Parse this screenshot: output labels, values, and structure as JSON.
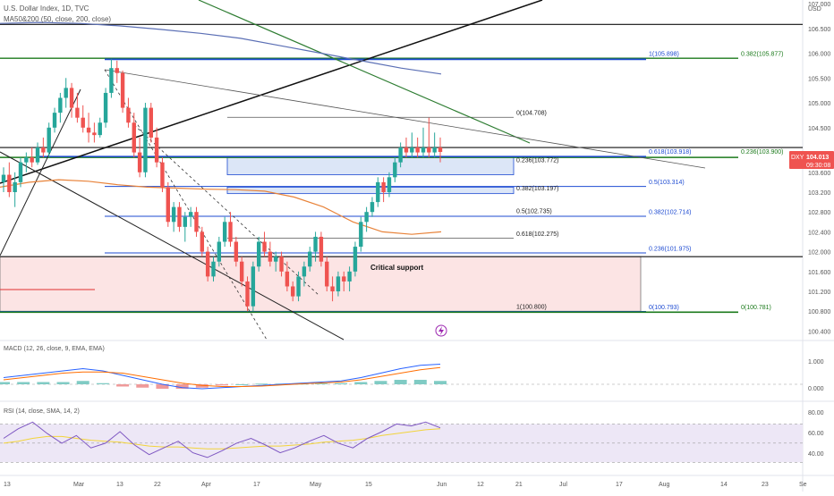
{
  "header": {
    "title": "U.S. Dollar Index, 1D, TVC",
    "indicator": "MA50&200 (50, close, 200, close)",
    "currency": "USD"
  },
  "price_badge": {
    "symbol": "DXY",
    "price": "104.013",
    "countdown": "09:30:08"
  },
  "macd": {
    "label": "MACD (12, 26, close, 9, EMA, EMA)",
    "ticks": [
      "1.000",
      "0.000"
    ]
  },
  "rsi": {
    "label": "RSI (14, close, SMA, 14, 2)",
    "ticks": [
      "80.00",
      "60.00",
      "40.00"
    ]
  },
  "annotations": {
    "critical_support": "Critical support"
  },
  "fib_labels": [
    {
      "text": "1(105.898)",
      "color": "#1e4bd2"
    },
    {
      "text": "0.382(105.877)",
      "color": "#1b7a1b"
    },
    {
      "text": "0(104.708)",
      "color": "#222222"
    },
    {
      "text": "0.618(103.918)",
      "color": "#1e4bd2"
    },
    {
      "text": "0.236(103.900)",
      "color": "#1b7a1b"
    },
    {
      "text": "0.236(103.772)",
      "color": "#222222"
    },
    {
      "text": "0.5(103.314)",
      "color": "#1e4bd2"
    },
    {
      "text": "0.382(103.197)",
      "color": "#222222"
    },
    {
      "text": "0.5(102.735)",
      "color": "#222222"
    },
    {
      "text": "0.382(102.714)",
      "color": "#1e4bd2"
    },
    {
      "text": "0.618(102.275)",
      "color": "#222222"
    },
    {
      "text": "0.236(101.975)",
      "color": "#1e4bd2"
    },
    {
      "text": "1(100.800)",
      "color": "#222222"
    },
    {
      "text": "0(100.793)",
      "color": "#1e4bd2"
    },
    {
      "text": "0(100.781)",
      "color": "#1b7a1b"
    }
  ],
  "colors": {
    "up": "#26a69a",
    "down": "#ef5350",
    "ma50": "#e8833a",
    "ma200": "#5b6fb5",
    "fib_blue": "#1e4bd2",
    "fib_green": "#1b7a1b",
    "support_fill": "#fce4e4",
    "rsi_line": "#7e57c2",
    "rsi_ma": "#f2d43b"
  },
  "chart_data": {
    "type": "candlestick",
    "symbol": "DXY",
    "interval": "1D",
    "ylim": [
      100.3,
      107.0
    ],
    "y_ticks": [
      107.0,
      106.5,
      106.0,
      105.5,
      105.0,
      104.5,
      103.6,
      103.2,
      102.8,
      102.4,
      102.0,
      101.6,
      101.2,
      100.8,
      100.4
    ],
    "x_ticks": [
      "13",
      "Mar",
      "13",
      "22",
      "Apr",
      "17",
      "May",
      "15",
      "Jun",
      "12",
      "21",
      "Jul",
      "17",
      "Aug",
      "14",
      "23",
      "Se"
    ],
    "candles": [
      {
        "o": 103.4,
        "h": 103.7,
        "l": 103.2,
        "c": 103.55
      },
      {
        "o": 103.55,
        "h": 103.8,
        "l": 103.1,
        "c": 103.2
      },
      {
        "o": 103.2,
        "h": 103.6,
        "l": 102.9,
        "c": 103.4
      },
      {
        "o": 103.4,
        "h": 103.9,
        "l": 103.3,
        "c": 103.8
      },
      {
        "o": 103.8,
        "h": 104.0,
        "l": 103.6,
        "c": 103.9
      },
      {
        "o": 103.9,
        "h": 104.1,
        "l": 103.7,
        "c": 103.8
      },
      {
        "o": 103.8,
        "h": 104.2,
        "l": 103.75,
        "c": 104.1
      },
      {
        "o": 104.1,
        "h": 104.3,
        "l": 103.9,
        "c": 104.0
      },
      {
        "o": 104.0,
        "h": 104.6,
        "l": 103.9,
        "c": 104.5
      },
      {
        "o": 104.5,
        "h": 104.9,
        "l": 104.4,
        "c": 104.8
      },
      {
        "o": 104.8,
        "h": 105.2,
        "l": 104.6,
        "c": 105.1
      },
      {
        "o": 105.1,
        "h": 105.5,
        "l": 104.9,
        "c": 105.3
      },
      {
        "o": 105.3,
        "h": 105.4,
        "l": 104.7,
        "c": 104.9
      },
      {
        "o": 104.9,
        "h": 105.2,
        "l": 104.6,
        "c": 104.7
      },
      {
        "o": 104.7,
        "h": 104.95,
        "l": 104.4,
        "c": 104.5
      },
      {
        "o": 104.5,
        "h": 104.8,
        "l": 104.2,
        "c": 104.4
      },
      {
        "o": 104.4,
        "h": 104.6,
        "l": 104.2,
        "c": 104.35
      },
      {
        "o": 104.35,
        "h": 104.7,
        "l": 104.3,
        "c": 104.6
      },
      {
        "o": 104.6,
        "h": 105.3,
        "l": 104.5,
        "c": 105.2
      },
      {
        "o": 105.2,
        "h": 105.88,
        "l": 105.1,
        "c": 105.7
      },
      {
        "o": 105.7,
        "h": 105.85,
        "l": 105.4,
        "c": 105.6
      },
      {
        "o": 105.6,
        "h": 105.65,
        "l": 104.8,
        "c": 104.9
      },
      {
        "o": 104.9,
        "h": 105.1,
        "l": 104.5,
        "c": 104.6
      },
      {
        "o": 104.6,
        "h": 104.8,
        "l": 103.9,
        "c": 104.0
      },
      {
        "o": 104.0,
        "h": 104.3,
        "l": 103.5,
        "c": 103.6
      },
      {
        "o": 103.6,
        "h": 105.0,
        "l": 103.5,
        "c": 104.9
      },
      {
        "o": 104.9,
        "h": 105.0,
        "l": 104.2,
        "c": 104.3
      },
      {
        "o": 104.3,
        "h": 104.5,
        "l": 103.7,
        "c": 103.8
      },
      {
        "o": 103.8,
        "h": 103.9,
        "l": 103.2,
        "c": 103.3
      },
      {
        "o": 103.3,
        "h": 103.4,
        "l": 102.5,
        "c": 102.6
      },
      {
        "o": 102.6,
        "h": 103.0,
        "l": 102.4,
        "c": 102.9
      },
      {
        "o": 102.9,
        "h": 103.0,
        "l": 102.4,
        "c": 102.5
      },
      {
        "o": 102.5,
        "h": 102.8,
        "l": 102.2,
        "c": 102.7
      },
      {
        "o": 102.7,
        "h": 102.9,
        "l": 102.5,
        "c": 102.8
      },
      {
        "o": 102.8,
        "h": 102.9,
        "l": 102.3,
        "c": 102.4
      },
      {
        "o": 102.4,
        "h": 102.5,
        "l": 101.9,
        "c": 102.0
      },
      {
        "o": 102.0,
        "h": 102.1,
        "l": 101.4,
        "c": 101.5
      },
      {
        "o": 101.5,
        "h": 101.9,
        "l": 101.4,
        "c": 101.8
      },
      {
        "o": 101.8,
        "h": 102.3,
        "l": 101.7,
        "c": 102.2
      },
      {
        "o": 102.2,
        "h": 102.7,
        "l": 102.1,
        "c": 102.6
      },
      {
        "o": 102.6,
        "h": 102.8,
        "l": 102.1,
        "c": 102.2
      },
      {
        "o": 102.2,
        "h": 102.3,
        "l": 101.7,
        "c": 101.8
      },
      {
        "o": 101.8,
        "h": 101.9,
        "l": 101.3,
        "c": 101.4
      },
      {
        "o": 101.4,
        "h": 101.5,
        "l": 100.8,
        "c": 100.9
      },
      {
        "o": 100.9,
        "h": 101.8,
        "l": 100.8,
        "c": 101.7
      },
      {
        "o": 101.7,
        "h": 102.3,
        "l": 101.6,
        "c": 102.2
      },
      {
        "o": 102.2,
        "h": 102.4,
        "l": 101.9,
        "c": 102.0
      },
      {
        "o": 102.0,
        "h": 102.2,
        "l": 101.7,
        "c": 101.8
      },
      {
        "o": 101.8,
        "h": 102.0,
        "l": 101.6,
        "c": 101.9
      },
      {
        "o": 101.9,
        "h": 102.0,
        "l": 101.5,
        "c": 101.6
      },
      {
        "o": 101.6,
        "h": 101.8,
        "l": 101.2,
        "c": 101.3
      },
      {
        "o": 101.3,
        "h": 101.4,
        "l": 101.0,
        "c": 101.1
      },
      {
        "o": 101.1,
        "h": 101.6,
        "l": 101.0,
        "c": 101.5
      },
      {
        "o": 101.5,
        "h": 101.8,
        "l": 101.3,
        "c": 101.7
      },
      {
        "o": 101.7,
        "h": 102.1,
        "l": 101.6,
        "c": 102.0
      },
      {
        "o": 102.0,
        "h": 102.4,
        "l": 101.8,
        "c": 102.3
      },
      {
        "o": 102.3,
        "h": 102.4,
        "l": 101.7,
        "c": 101.8
      },
      {
        "o": 101.8,
        "h": 101.9,
        "l": 101.2,
        "c": 101.3
      },
      {
        "o": 101.3,
        "h": 101.5,
        "l": 101.0,
        "c": 101.2
      },
      {
        "o": 101.2,
        "h": 101.6,
        "l": 101.1,
        "c": 101.5
      },
      {
        "o": 101.5,
        "h": 101.6,
        "l": 101.2,
        "c": 101.4
      },
      {
        "o": 101.4,
        "h": 101.7,
        "l": 101.2,
        "c": 101.6
      },
      {
        "o": 101.6,
        "h": 102.2,
        "l": 101.5,
        "c": 102.1
      },
      {
        "o": 102.1,
        "h": 102.7,
        "l": 102.0,
        "c": 102.6
      },
      {
        "o": 102.6,
        "h": 102.9,
        "l": 102.4,
        "c": 102.8
      },
      {
        "o": 102.8,
        "h": 103.1,
        "l": 102.7,
        "c": 103.0
      },
      {
        "o": 103.0,
        "h": 103.5,
        "l": 102.9,
        "c": 103.4
      },
      {
        "o": 103.4,
        "h": 103.5,
        "l": 103.0,
        "c": 103.2
      },
      {
        "o": 103.2,
        "h": 103.6,
        "l": 103.1,
        "c": 103.5
      },
      {
        "o": 103.5,
        "h": 103.9,
        "l": 103.4,
        "c": 103.8
      },
      {
        "o": 103.8,
        "h": 104.2,
        "l": 103.7,
        "c": 104.1
      },
      {
        "o": 104.1,
        "h": 104.3,
        "l": 103.9,
        "c": 104.0
      },
      {
        "o": 104.0,
        "h": 104.4,
        "l": 103.9,
        "c": 104.1
      },
      {
        "o": 104.1,
        "h": 104.3,
        "l": 103.9,
        "c": 104.0
      },
      {
        "o": 104.0,
        "h": 104.5,
        "l": 103.9,
        "c": 104.1
      },
      {
        "o": 104.1,
        "h": 104.7,
        "l": 103.9,
        "c": 104.0
      },
      {
        "o": 104.0,
        "h": 104.4,
        "l": 103.9,
        "c": 104.1
      },
      {
        "o": 104.1,
        "h": 104.3,
        "l": 103.8,
        "c": 104.01
      }
    ],
    "ma200": [
      106.6,
      106.62,
      106.6,
      106.55,
      106.48,
      106.4,
      106.3,
      106.15,
      106.0,
      105.85,
      105.7,
      105.58
    ],
    "ma50": [
      103.3,
      103.4,
      103.45,
      103.42,
      103.35,
      103.3,
      103.28,
      103.26,
      103.25,
      103.22,
      103.1,
      102.9,
      102.6,
      102.4,
      102.35,
      102.4
    ],
    "fib_levels": [
      105.898,
      105.877,
      104.708,
      103.918,
      103.9,
      103.772,
      103.314,
      103.197,
      102.735,
      102.714,
      102.275,
      101.975,
      100.8,
      100.793,
      100.781
    ],
    "critical_support_zone": [
      100.8,
      101.9
    ],
    "macd_ylim": [
      -0.6,
      1.4
    ],
    "macd_line": [
      0.3,
      0.4,
      0.5,
      0.6,
      0.7,
      0.6,
      0.4,
      0.2,
      0.0,
      -0.15,
      -0.2,
      -0.15,
      -0.1,
      -0.05,
      0.0,
      0.05,
      0.1,
      0.15,
      0.3,
      0.5,
      0.7,
      0.85,
      0.9
    ],
    "macd_signal": [
      0.2,
      0.3,
      0.4,
      0.5,
      0.55,
      0.55,
      0.5,
      0.35,
      0.2,
      0.05,
      -0.05,
      -0.1,
      -0.1,
      -0.08,
      -0.03,
      0.02,
      0.06,
      0.1,
      0.2,
      0.35,
      0.5,
      0.65,
      0.75
    ],
    "macd_hist": [
      0.1,
      0.1,
      0.1,
      0.1,
      0.15,
      0.05,
      -0.1,
      -0.15,
      -0.2,
      -0.2,
      -0.15,
      -0.05,
      0.0,
      0.03,
      0.03,
      0.03,
      0.04,
      0.05,
      0.1,
      0.15,
      0.2,
      0.2,
      0.15
    ],
    "rsi_ylim": [
      20,
      90
    ],
    "rsi_band": [
      30,
      70
    ],
    "rsi_line": [
      55,
      65,
      72,
      60,
      50,
      58,
      45,
      50,
      62,
      48,
      38,
      45,
      52,
      40,
      35,
      42,
      50,
      55,
      48,
      40,
      45,
      52,
      58,
      50,
      45,
      55,
      62,
      70,
      68,
      72,
      66
    ],
    "rsi_ma": [
      50,
      52,
      55,
      57,
      57,
      55,
      53,
      52,
      51,
      49,
      47,
      46,
      46,
      45,
      44,
      44,
      45,
      46,
      47,
      47,
      48,
      49,
      51,
      52,
      53,
      55,
      58,
      60,
      62,
      64,
      65
    ]
  }
}
